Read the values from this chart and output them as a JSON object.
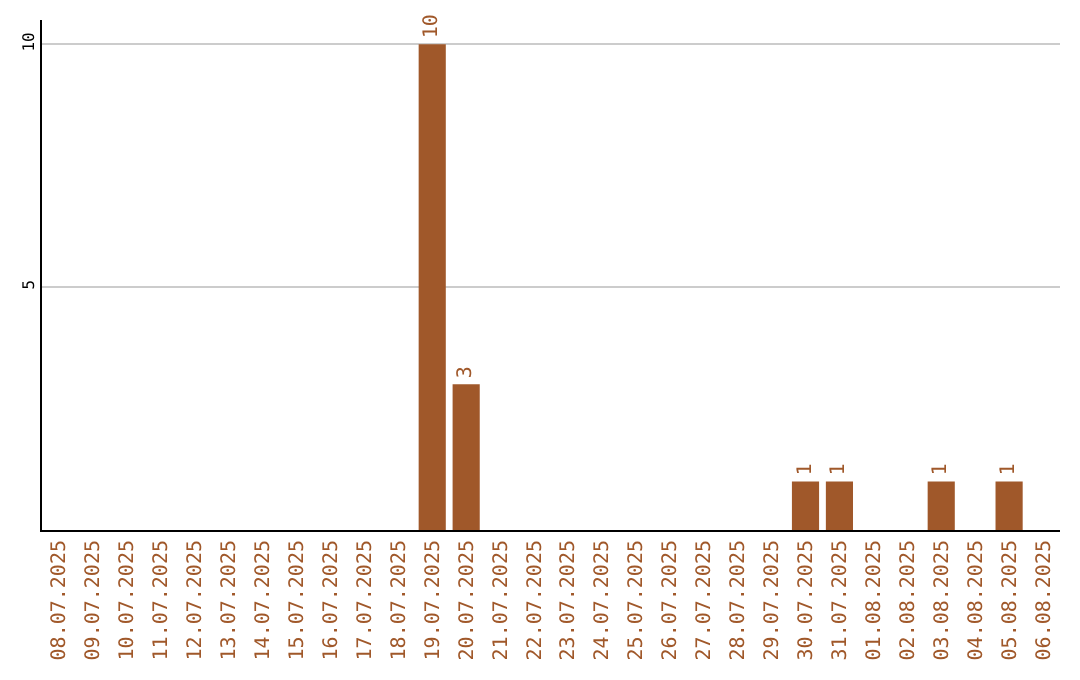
{
  "chart_data": {
    "type": "bar",
    "categories": [
      "08.07.2025",
      "09.07.2025",
      "10.07.2025",
      "11.07.2025",
      "12.07.2025",
      "13.07.2025",
      "14.07.2025",
      "15.07.2025",
      "16.07.2025",
      "17.07.2025",
      "18.07.2025",
      "19.07.2025",
      "20.07.2025",
      "21.07.2025",
      "22.07.2025",
      "23.07.2025",
      "24.07.2025",
      "25.07.2025",
      "26.07.2025",
      "27.07.2025",
      "28.07.2025",
      "29.07.2025",
      "30.07.2025",
      "31.07.2025",
      "01.08.2025",
      "02.08.2025",
      "03.08.2025",
      "04.08.2025",
      "05.08.2025",
      "06.08.2025"
    ],
    "values": [
      0,
      0,
      0,
      0,
      0,
      0,
      0,
      0,
      0,
      0,
      0,
      10,
      3,
      0,
      0,
      0,
      0,
      0,
      0,
      0,
      0,
      0,
      1,
      1,
      0,
      0,
      1,
      0,
      1,
      0
    ],
    "value_labels": [
      null,
      null,
      null,
      null,
      null,
      null,
      null,
      null,
      null,
      null,
      null,
      "10",
      "3",
      null,
      null,
      null,
      null,
      null,
      null,
      null,
      null,
      null,
      "1",
      "1",
      null,
      null,
      "1",
      null,
      "1",
      null
    ],
    "color": "#a0582a",
    "ylim": [
      0,
      10.5
    ],
    "yticks": [
      5,
      10
    ],
    "grid": "y",
    "legend": false
  }
}
